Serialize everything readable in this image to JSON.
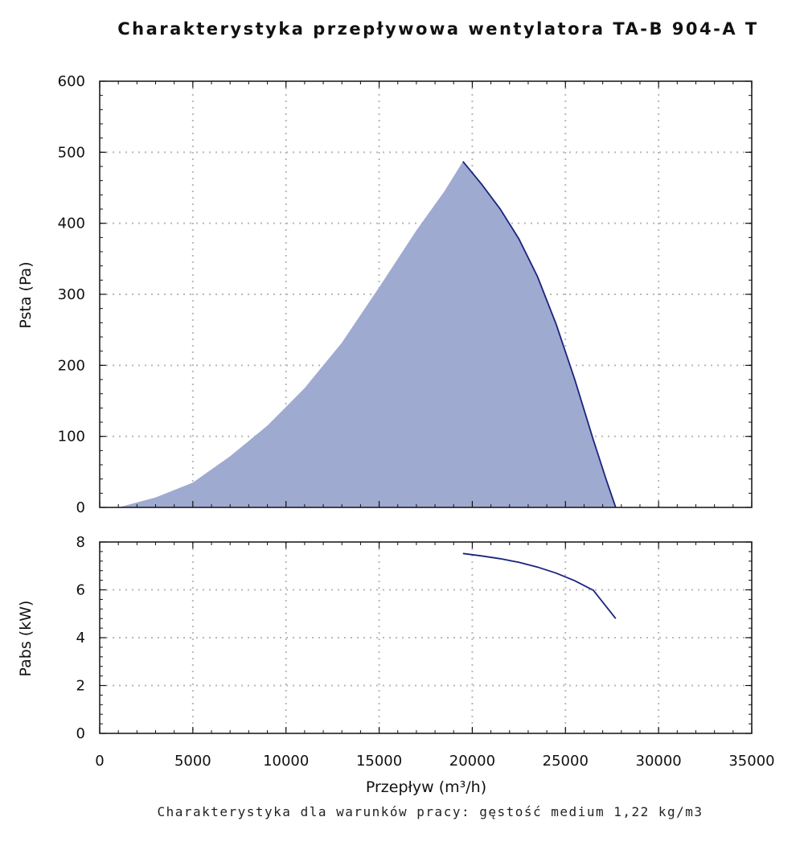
{
  "title": "Charakterystyka przepływowa wentylatora TA-B 904-A T",
  "footer_note": "Charakterystyka dla warunków pracy: gęstość medium 1,22 kg/m3",
  "colors": {
    "curve": "#1a237e",
    "fill": "#9faad1",
    "grid": "#b8b8b8",
    "axis": "#111111"
  },
  "chart_data": [
    {
      "type": "area",
      "ylabel": "Psta (Pa)",
      "xlim": [
        0,
        35000
      ],
      "ylim": [
        0,
        600
      ],
      "grid": true,
      "x_ticks": [
        "0",
        "5000",
        "10000",
        "15000",
        "20000",
        "25000",
        "30000",
        "35000"
      ],
      "y_ticks": [
        "0",
        "100",
        "200",
        "300",
        "400",
        "500",
        "600"
      ],
      "filled_region_lower_boundary": {
        "x": [
          1000,
          3000,
          5000,
          7000,
          9000,
          11000,
          13000,
          15000,
          17000,
          18500,
          19500
        ],
        "y": [
          0,
          14,
          35,
          72,
          115,
          168,
          232,
          310,
          390,
          445,
          487
        ]
      },
      "series": [
        {
          "x": [
            19500,
            20500,
            21500,
            22500,
            23500,
            24500,
            25500,
            26500,
            27200,
            27700
          ],
          "y": [
            487,
            455,
            420,
            378,
            325,
            258,
            180,
            95,
            38,
            0
          ]
        }
      ]
    },
    {
      "type": "line",
      "xlabel": "Przepływ (m³/h)",
      "ylabel": "Pabs (kW)",
      "xlim": [
        0,
        35000
      ],
      "ylim": [
        0,
        8
      ],
      "grid": true,
      "x_ticks": [
        "0",
        "5000",
        "10000",
        "15000",
        "20000",
        "25000",
        "30000",
        "35000"
      ],
      "y_ticks": [
        "0",
        "2",
        "4",
        "6",
        "8"
      ],
      "series": [
        {
          "x": [
            19500,
            20500,
            21500,
            22500,
            23500,
            24500,
            25500,
            26500,
            27700
          ],
          "y": [
            7.52,
            7.42,
            7.3,
            7.15,
            6.95,
            6.7,
            6.38,
            5.98,
            4.8
          ]
        }
      ]
    }
  ]
}
